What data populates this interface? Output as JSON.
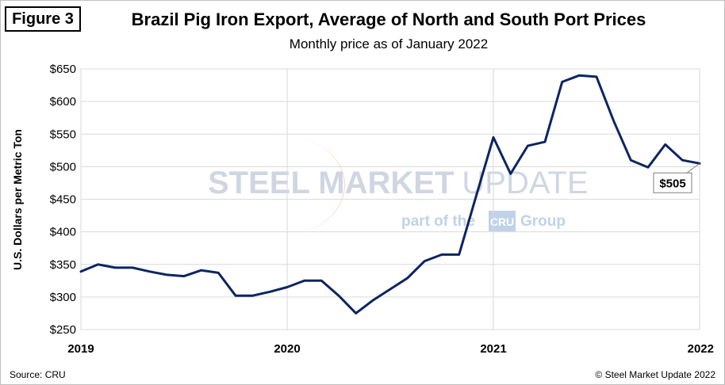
{
  "figure_label": "Figure 3",
  "source": "Source: CRU",
  "copyright": "© Steel Market Update 2022",
  "watermark": {
    "brand": "STEEL MARKET UPDATE",
    "brand_part1": "STEEL MARKET",
    "brand_part2": "UPDATE",
    "tagline_prefix": "part of the",
    "tagline_logo": "CRU",
    "tagline_suffix": "Group"
  },
  "chart_data": {
    "type": "line",
    "title": "Brazil Pig Iron Export, Average of North and South Port Prices",
    "subtitle": "Monthly price as of January 2022",
    "xlabel": "",
    "ylabel": "U.S. Dollars per Metric Ton",
    "ylim": [
      250,
      650
    ],
    "yticks": [
      250,
      300,
      350,
      400,
      450,
      500,
      550,
      600,
      650
    ],
    "ytick_labels": [
      "$250",
      "$300",
      "$350",
      "$400",
      "$450",
      "$500",
      "$550",
      "$600",
      "$650"
    ],
    "xlim": [
      0,
      36
    ],
    "xticks": [
      0,
      12,
      24,
      36
    ],
    "xtick_labels": [
      "2019",
      "2020",
      "2021",
      "2022"
    ],
    "grid": true,
    "series": [
      {
        "name": "Brazil pig iron export price",
        "color": "#0d2560",
        "x": [
          0,
          1,
          2,
          3,
          4,
          5,
          6,
          7,
          8,
          9,
          10,
          11,
          12,
          13,
          14,
          15,
          16,
          17,
          18,
          19,
          20,
          21,
          22,
          23,
          24,
          25,
          26,
          27,
          28,
          29,
          30,
          31,
          32,
          33,
          34,
          35,
          36
        ],
        "values": [
          339,
          350,
          345,
          345,
          339,
          334,
          332,
          341,
          337,
          302,
          302,
          308,
          315,
          325,
          325,
          302,
          275,
          295,
          312,
          329,
          355,
          365,
          365,
          455,
          545,
          489,
          532,
          538,
          630,
          640,
          638,
          570,
          510,
          499,
          534,
          510,
          505
        ]
      }
    ],
    "annotation": {
      "text": "$505",
      "x": 36,
      "y": 505
    }
  }
}
